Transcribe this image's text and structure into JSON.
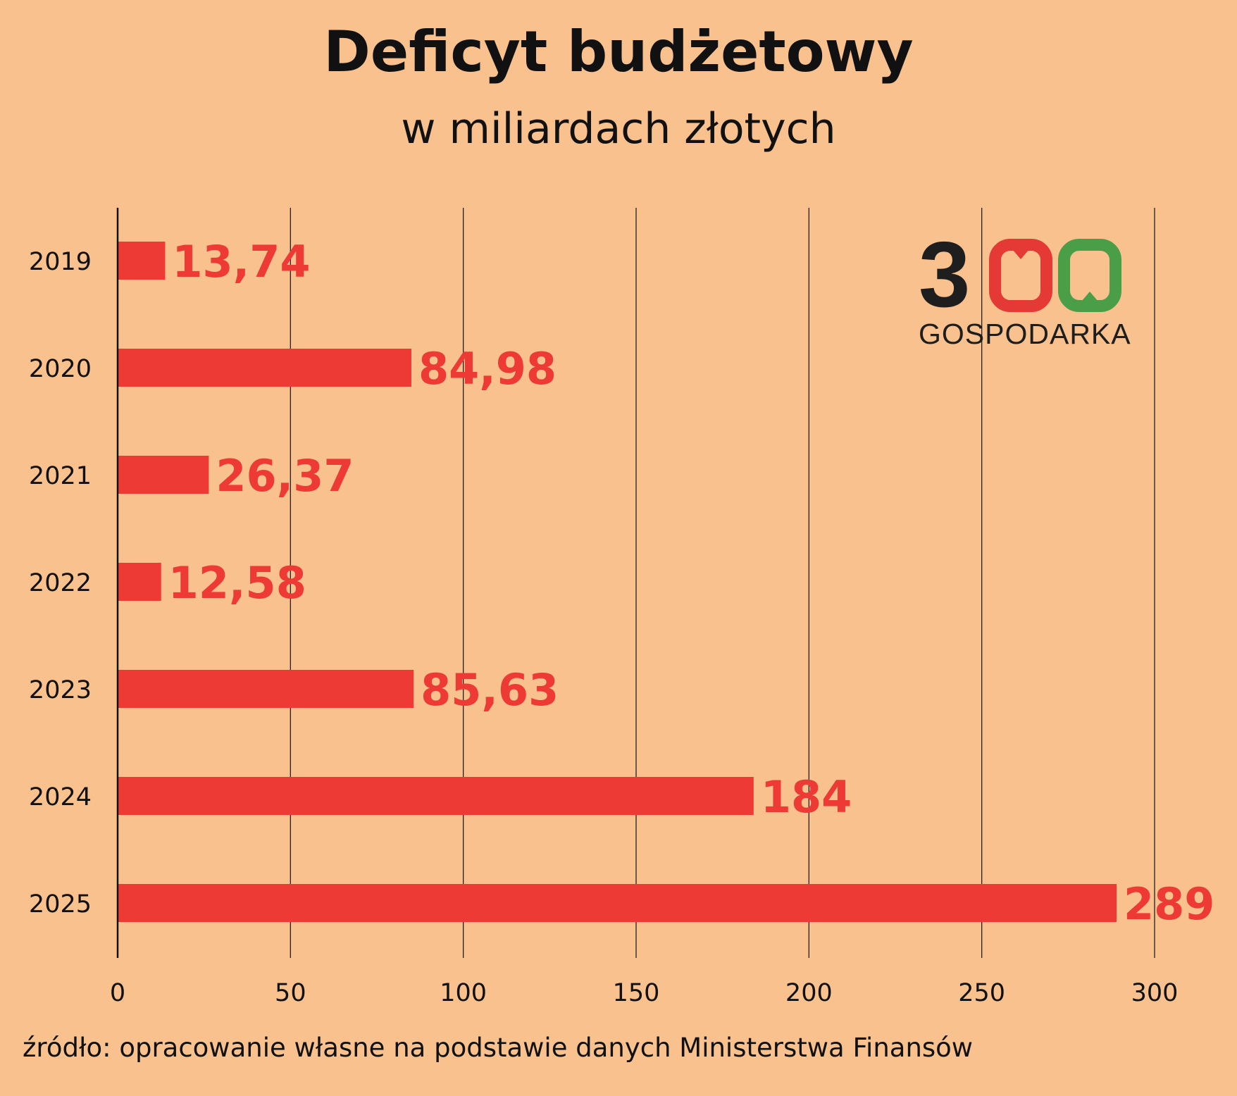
{
  "chart_data": {
    "type": "bar",
    "orientation": "horizontal",
    "title": "Deficyt budżetowy",
    "subtitle": "w miliardach złotych",
    "categories": [
      "2019",
      "2020",
      "2021",
      "2022",
      "2023",
      "2024",
      "2025"
    ],
    "values": [
      13.74,
      84.98,
      26.37,
      12.58,
      85.63,
      184,
      289
    ],
    "data_labels": [
      "13,74",
      "84,98",
      "26,37",
      "12,58",
      "85,63",
      "184",
      "289"
    ],
    "xlim": [
      0,
      300
    ],
    "x_ticks": [
      0,
      50,
      100,
      150,
      200,
      250,
      300
    ],
    "x_tick_labels": [
      "0",
      "50",
      "100",
      "150",
      "200",
      "250",
      "300"
    ],
    "grid": "vertical",
    "legend": "none",
    "source": "źródło: opracowanie własne na podstawie danych Ministerstwa Finansów"
  },
  "logo": {
    "digit": "3",
    "text": "GOSPODARKA"
  },
  "colors": {
    "background": "#F8C18D",
    "bar": "#EE3A35",
    "label": "#EE3A35",
    "text": "#111111",
    "grid": "#222222"
  }
}
